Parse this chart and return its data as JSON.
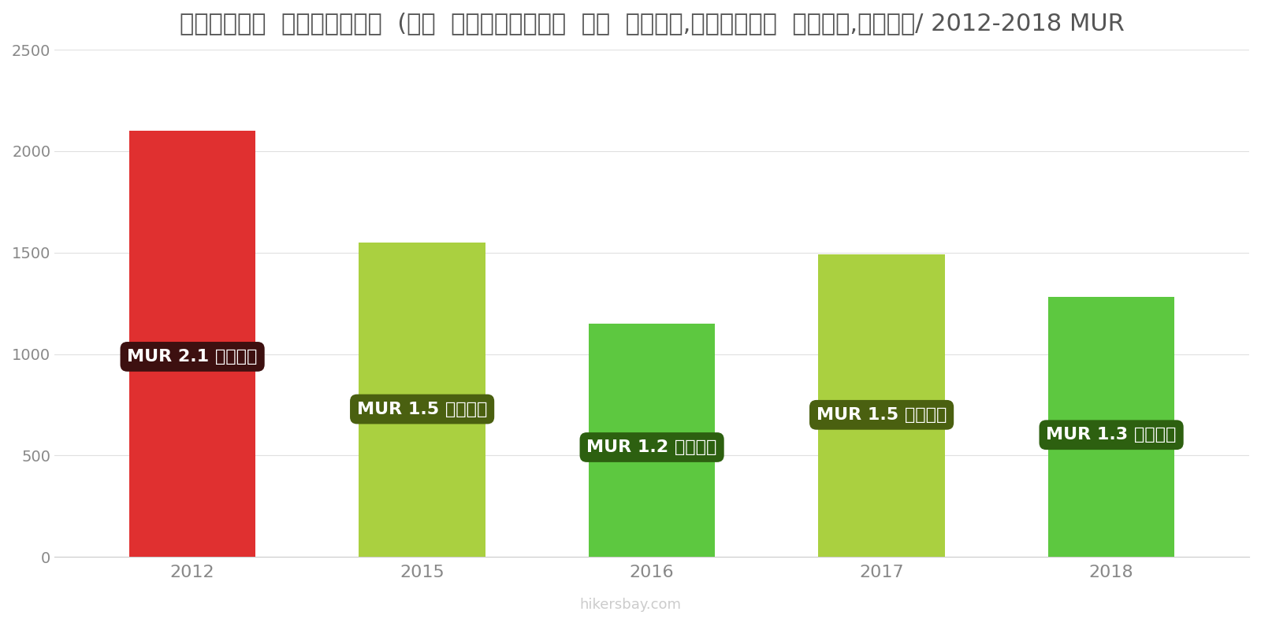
{
  "title": "मॉरिशस  इंटरनेट  (००  एमबीपीएस  या  अधिक,असीमित  डेटा,केबल/ 2012-2018 MUR",
  "years": [
    "2012",
    "2015",
    "2016",
    "2017",
    "2018"
  ],
  "values": [
    2100,
    1550,
    1150,
    1490,
    1280
  ],
  "bar_colors": [
    "#e03030",
    "#aad040",
    "#5dc840",
    "#aad040",
    "#5dc840"
  ],
  "label_bg_colors": [
    "#3d1010",
    "#4a6010",
    "#2d6010",
    "#4a6010",
    "#2d6010"
  ],
  "labels": [
    "MUR 2.1 हज़ार",
    "MUR 1.5 हज़ार",
    "MUR 1.2 हज़ार",
    "MUR 1.5 हज़ार",
    "MUR 1.3 हज़ार"
  ],
  "ylim": [
    0,
    2500
  ],
  "yticks": [
    0,
    500,
    1000,
    1500,
    2000,
    2500
  ],
  "background_color": "#ffffff",
  "watermark": "hikersbay.com",
  "title_fontsize": 22,
  "bar_width": 0.55
}
